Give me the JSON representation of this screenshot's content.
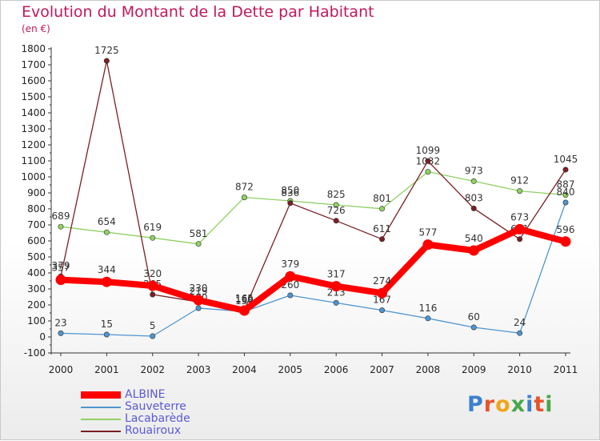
{
  "title": "Evolution du Montant de la Dette par Habitant",
  "unit_label": "(en €)",
  "brand": "Proxiti",
  "chart_data": {
    "type": "line",
    "title": "Evolution du Montant de la Dette par Habitant",
    "ylabel": "(en €)",
    "xlabel": "",
    "categories": [
      "2000",
      "2001",
      "2002",
      "2003",
      "2004",
      "2005",
      "2006",
      "2007",
      "2008",
      "2009",
      "2010",
      "2011"
    ],
    "ylim": [
      -100,
      1800
    ],
    "yticks": [
      -100,
      0,
      100,
      200,
      300,
      400,
      500,
      600,
      700,
      800,
      900,
      1000,
      1100,
      1200,
      1300,
      1400,
      1500,
      1600,
      1700,
      1800
    ],
    "grid": false,
    "legend_position": "bottom-left",
    "series": [
      {
        "name": "ALBINE",
        "color": "#ff0000",
        "values": [
          357,
          344,
          320,
          230,
          165,
          379,
          317,
          274,
          577,
          540,
          673,
          596
        ]
      },
      {
        "name": "Sauveterre",
        "color": "#4f95cf",
        "values": [
          23,
          15,
          5,
          180,
          159,
          260,
          213,
          167,
          116,
          60,
          24,
          840
        ]
      },
      {
        "name": "Lacabarède",
        "color": "#8fd163",
        "values": [
          689,
          654,
          619,
          581,
          872,
          850,
          825,
          801,
          1032,
          973,
          912,
          887
        ]
      },
      {
        "name": "Rouairoux",
        "color": "#7a1f24",
        "values": [
          379,
          1725,
          265,
          219,
          169,
          836,
          726,
          611,
          1099,
          803,
          611,
          1045
        ]
      }
    ]
  }
}
